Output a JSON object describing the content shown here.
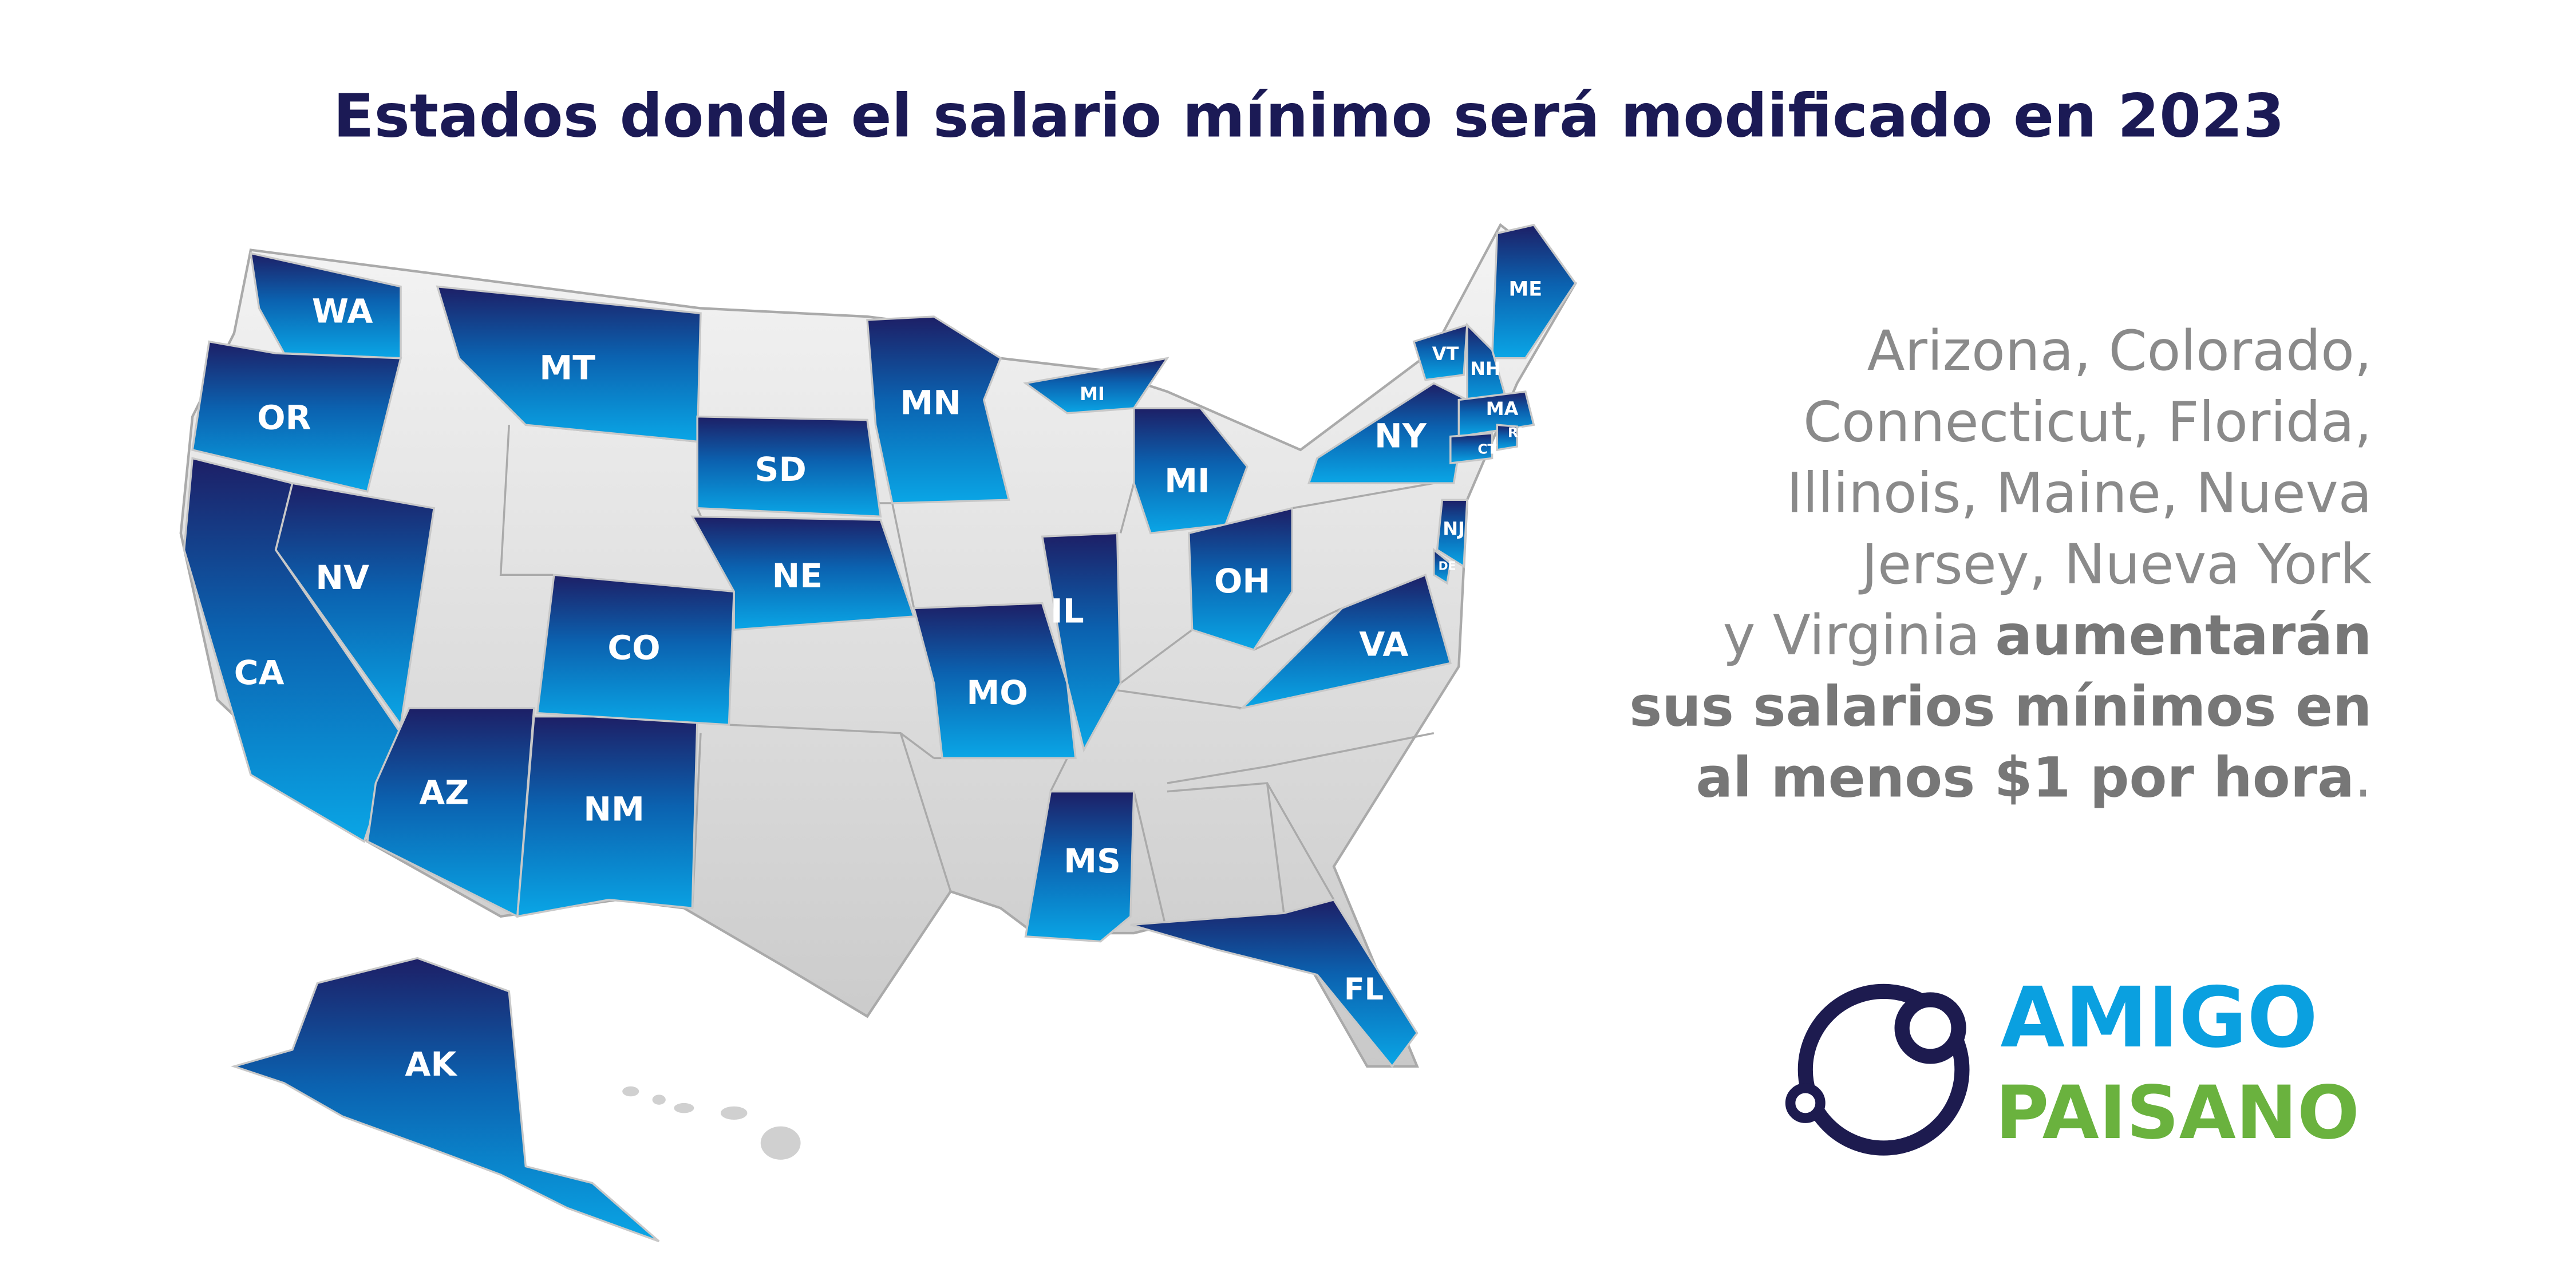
{
  "title": "Estados donde el salario mínimo será modificado en 2023",
  "map": {
    "states": [
      {
        "label": "WA"
      },
      {
        "label": "OR"
      },
      {
        "label": "CA"
      },
      {
        "label": "NV"
      },
      {
        "label": "AZ"
      },
      {
        "label": "NM"
      },
      {
        "label": "CO"
      },
      {
        "label": "MT"
      },
      {
        "label": "SD"
      },
      {
        "label": "NE"
      },
      {
        "label": "MN"
      },
      {
        "label": "MO"
      },
      {
        "label": "IL"
      },
      {
        "label": "MS"
      },
      {
        "label": "MI"
      },
      {
        "label": "MI"
      },
      {
        "label": "OH"
      },
      {
        "label": "VA"
      },
      {
        "label": "FL"
      },
      {
        "label": "NY"
      },
      {
        "label": "NJ"
      },
      {
        "label": "ME"
      },
      {
        "label": "VT"
      },
      {
        "label": "NH"
      },
      {
        "label": "MA"
      },
      {
        "label": "CT"
      },
      {
        "label": "RI"
      },
      {
        "label": "DE"
      },
      {
        "label": "AK"
      }
    ]
  },
  "description": {
    "plain": [
      "Arizona, Colorado,",
      "Connecticut, Florida,",
      "Illinois, Maine, Nueva",
      "Jersey, Nueva York",
      "y Virginia"
    ],
    "bold": [
      "aumentarán",
      "sus salarios mínimos en",
      "al menos $1 por hora"
    ],
    "end": "."
  },
  "logo": {
    "line1": "AMIGO",
    "line2": "PAISANO"
  }
}
